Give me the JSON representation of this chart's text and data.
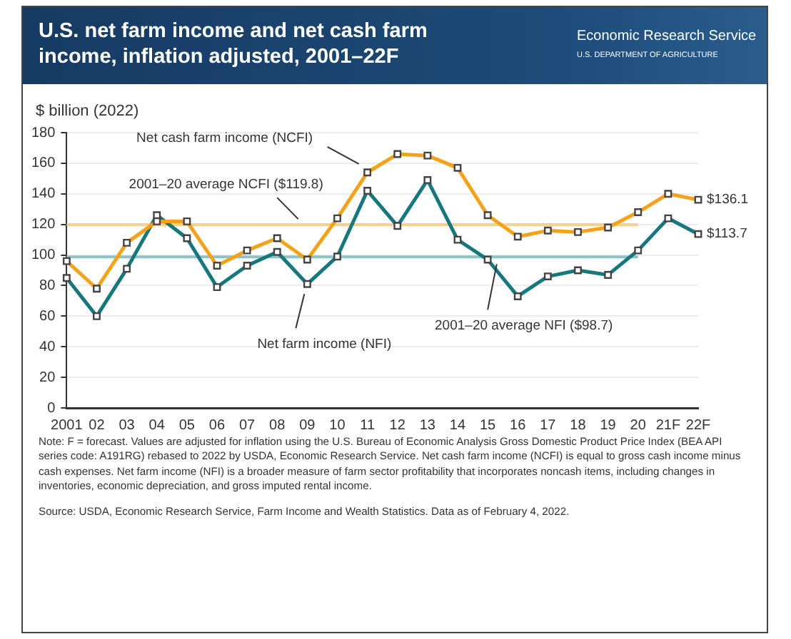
{
  "chart_data": {
    "type": "line",
    "title": "U.S. net farm income and net cash farm income, inflation adjusted, 2001–22F",
    "ylabel": "$ billion (2022)",
    "categories": [
      "2001",
      "02",
      "03",
      "04",
      "05",
      "06",
      "07",
      "08",
      "09",
      "10",
      "11",
      "12",
      "13",
      "14",
      "15",
      "16",
      "17",
      "18",
      "19",
      "20",
      "21F",
      "22F"
    ],
    "series": [
      {
        "name": "Net cash farm income (NCFI)",
        "color": "#f5a21b",
        "values": [
          96,
          78,
          108,
          122,
          122,
          93,
          103,
          111,
          97,
          124,
          154,
          166,
          165,
          157,
          126,
          112,
          116,
          115,
          118,
          128,
          140,
          136.1
        ],
        "value_labels": [
          null,
          null,
          null,
          null,
          null,
          null,
          null,
          null,
          null,
          null,
          null,
          null,
          null,
          null,
          null,
          null,
          null,
          null,
          null,
          null,
          null,
          "$136.1"
        ]
      },
      {
        "name": "Net farm income (NFI)",
        "color": "#17777e",
        "values": [
          85,
          60,
          91,
          126,
          111,
          79,
          93,
          102,
          81,
          99,
          142,
          119,
          149,
          110,
          97,
          73,
          86,
          90,
          87,
          103,
          124,
          113.7
        ],
        "value_labels": [
          null,
          null,
          null,
          null,
          null,
          null,
          null,
          null,
          null,
          null,
          null,
          null,
          null,
          null,
          null,
          null,
          null,
          null,
          null,
          null,
          null,
          "$113.7"
        ]
      }
    ],
    "ref_lines": [
      {
        "axis": "y",
        "value": 119.8,
        "label": "2001–20 average NCFI ($119.8)",
        "color": "#f8d08c"
      },
      {
        "axis": "y",
        "value": 98.7,
        "label": "2001–20 average NFI ($98.7)",
        "color": "#8cc3c7"
      }
    ],
    "ylim": [
      0,
      180
    ],
    "yticks": [
      0,
      20,
      40,
      60,
      80,
      100,
      120,
      140,
      160,
      180
    ],
    "grid": "y",
    "legend": false,
    "marker": "square",
    "line_style": "solid",
    "annotations": [
      "Economic Research Service",
      "U.S. DEPARTMENT OF AGRICULTURE",
      "Note: F = forecast. Values are adjusted for inflation using the U.S. Bureau of Economic Analysis Gross Domestic Product Price Index (BEA API series code: A191RG) rebased to 2022 by USDA, Economic Research Service. Net cash farm income (NCFI) is equal to gross cash income minus cash expenses. Net farm income (NFI) is a broader measure of farm sector profitability that incorporates noncash items, including changes in inventories, economic depreciation, and gross imputed rental income.",
      "Source: USDA, Economic Research Service, Farm Income and Wealth Statistics. Data as of February 4, 2022."
    ]
  }
}
